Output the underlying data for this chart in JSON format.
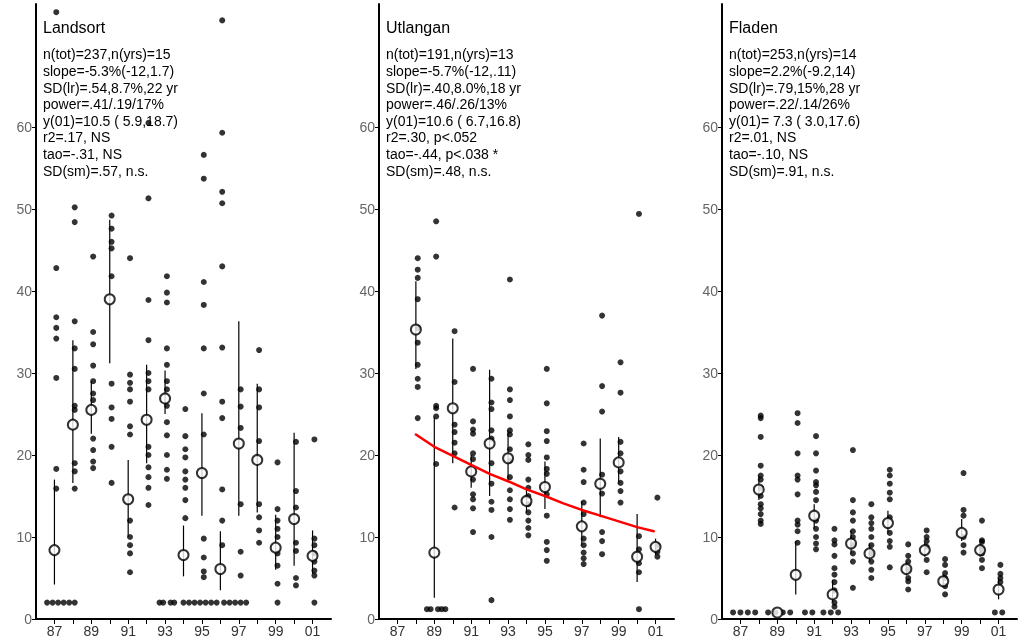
{
  "chart_data": [
    {
      "type": "scatter",
      "title": "Landsort",
      "annotations": [
        "n(tot)=237,n(yrs)=15",
        "slope=-5.3%(-12,1.7)",
        "SD(lr)=.54,8.7%,22 yr",
        "power=.41/.19/17%",
        "y(01)=10.5 ( 5.9,18.7)",
        "r2=.17, NS",
        "tao=-.31, NS",
        "SD(sm)=.57, n.s."
      ],
      "xlim": [
        1986,
        2002
      ],
      "xticks": [
        {
          "value": 1987,
          "label": "87"
        },
        {
          "value": 1988,
          "label": null
        },
        {
          "value": 1989,
          "label": "89"
        },
        {
          "value": 1990,
          "label": null
        },
        {
          "value": 1991,
          "label": "91"
        },
        {
          "value": 1992,
          "label": null
        },
        {
          "value": 1993,
          "label": "93"
        },
        {
          "value": 1994,
          "label": null
        },
        {
          "value": 1995,
          "label": "95"
        },
        {
          "value": 1996,
          "label": null
        },
        {
          "value": 1997,
          "label": "97"
        },
        {
          "value": 1998,
          "label": null
        },
        {
          "value": 1999,
          "label": "99"
        },
        {
          "value": 2000,
          "label": null
        },
        {
          "value": 2001,
          "label": "01"
        }
      ],
      "ylim": [
        0,
        75
      ],
      "yticks": [
        0,
        10,
        20,
        30,
        40,
        50,
        60
      ],
      "grid": false,
      "series": [
        {
          "marker": "circle",
          "color": "#000000",
          "x": [
            1987.1,
            1987.1,
            1987.1,
            1987.1,
            1987.1,
            1987.1,
            1987.1,
            1987.1,
            1986.6,
            1986.9,
            1987.2,
            1987.5,
            1987.8,
            1988.1,
            1988.1,
            1988.1,
            1988.1,
            1988.1,
            1988.1,
            1988.1,
            1988.1,
            1988.1,
            1988.1,
            1988.1,
            1989.1,
            1989.1,
            1989.1,
            1989.1,
            1989.1,
            1989.1,
            1989.1,
            1989.1,
            1989.1,
            1989.1,
            1989.1,
            1990.1,
            1990.1,
            1990.1,
            1990.1,
            1990.1,
            1990.1,
            1990.1,
            1990.1,
            1990.1,
            1990.1,
            1991.1,
            1991.1,
            1991.1,
            1991.1,
            1991.1,
            1991.1,
            1991.1,
            1991.1,
            1991.1,
            1991.1,
            1991.1,
            1991.1,
            1992.1,
            1992.1,
            1992.1,
            1992.1,
            1992.1,
            1992.1,
            1992.1,
            1992.1,
            1992.1,
            1992.1,
            1992.1,
            1992.1,
            1992.1,
            1993.1,
            1993.1,
            1993.1,
            1993.1,
            1993.1,
            1993.1,
            1993.1,
            1993.1,
            1993.1,
            1993.1,
            1993.1,
            1993.1,
            1993.1,
            1992.7,
            1992.9,
            1993.3,
            1993.5,
            1994.1,
            1994.1,
            1994.1,
            1994.1,
            1994.1,
            1994.1,
            1994.1,
            1994.1,
            1994.1,
            1994.0,
            1994.3,
            1994.6,
            1994.9,
            1995.2,
            1995.5,
            1995.8,
            1995.1,
            1995.1,
            1995.1,
            1995.1,
            1995.1,
            1995.1,
            1995.1,
            1995.1,
            1995.1,
            1995.1,
            1995.1,
            1996.1,
            1996.1,
            1996.1,
            1996.1,
            1996.1,
            1996.1,
            1996.1,
            1996.1,
            1996.1,
            1996.1,
            1996.1,
            1996.2,
            1996.5,
            1996.8,
            1997.1,
            1997.4,
            1997.1,
            1997.1,
            1997.1,
            1997.1,
            1997.1,
            1997.1,
            1998.1,
            1998.1,
            1998.1,
            1998.1,
            1998.1,
            1998.1,
            1998.1,
            1998.1,
            1999.1,
            1999.1,
            1999.1,
            1999.1,
            1999.1,
            1999.1,
            1999.1,
            1999.1,
            1999.1,
            2000.1,
            2000.1,
            2000.1,
            2000.1,
            2000.1,
            2000.1,
            2000.1,
            2001.1,
            2001.1,
            2001.1,
            2001.1,
            2001.1,
            2001.1,
            2001.1,
            2001.1
          ],
          "values": [
            74,
            42.8,
            36.8,
            35.5,
            34.2,
            29.4,
            18.3,
            15.9,
            2,
            2,
            2,
            2,
            2,
            2,
            50.2,
            48.4,
            36.3,
            33,
            30.5,
            26,
            25.5,
            19,
            18,
            15.9,
            44.2,
            35,
            33.5,
            30.9,
            29,
            27.5,
            26.7,
            22,
            20.6,
            19.2,
            18.4,
            49.2,
            47.6,
            46,
            45.2,
            41.8,
            28.7,
            25.8,
            24.4,
            21,
            16.6,
            44,
            29.8,
            28.8,
            28,
            26.5,
            23.5,
            22.5,
            12,
            10,
            9,
            8,
            5.7,
            60.5,
            51.3,
            38.9,
            34,
            30,
            29,
            28,
            21,
            20,
            18.5,
            17.3,
            16,
            13.9,
            41.8,
            39.8,
            38.6,
            33,
            31,
            29,
            28,
            26,
            24,
            22.4,
            20,
            18.2,
            17.1,
            2,
            2,
            2,
            2,
            25.6,
            22.3,
            20.7,
            19.7,
            18,
            17,
            16,
            14.5,
            12.3,
            2,
            2,
            2,
            2,
            2,
            2,
            2,
            56.6,
            53.7,
            41.1,
            38.3,
            33,
            27.5,
            22.5,
            9.8,
            7.5,
            5.8,
            5.1,
            73,
            59.3,
            52.1,
            50.7,
            43,
            33.1,
            26.5,
            24.5,
            15.8,
            12,
            9,
            2,
            2,
            2,
            2,
            2,
            28,
            25.9,
            23.3,
            14,
            8.2,
            5.3,
            32.8,
            28,
            25.8,
            21.7,
            14,
            12.4,
            10.8,
            9.3,
            19.1,
            13.4,
            12,
            11,
            10,
            8,
            6.5,
            4.3,
            2,
            21.6,
            15.6,
            13.6,
            9.3,
            8.3,
            5,
            4.1,
            21.9,
            9.8,
            9,
            8,
            7,
            5.9,
            5.3,
            2
          ]
        },
        {
          "marker": "circle",
          "color": "#000000",
          "x": [
            1987,
            1988,
            1989,
            1990,
            1991,
            1992,
            1993,
            1994,
            1995,
            1996,
            1997,
            1998,
            1999,
            2000,
            2001
          ],
          "values": [
            8.4,
            23.7,
            25.5,
            39,
            14.6,
            24.3,
            26.9,
            7.8,
            17.8,
            6.1,
            21.4,
            19.4,
            8.7,
            12.2,
            7.7
          ],
          "errors": [
            [
              4.2,
              17
            ],
            [
              16.6,
              34
            ],
            [
              22.6,
              29
            ],
            [
              31.2,
              48.7
            ],
            [
              10,
              19.4
            ],
            [
              19,
              31
            ],
            [
              25,
              30.3
            ],
            [
              5.2,
              11.4
            ],
            [
              12.6,
              25.1
            ],
            [
              3.5,
              10.7
            ],
            [
              12.6,
              36.3
            ],
            [
              13,
              28.7
            ],
            [
              6,
              12.7
            ],
            [
              6.5,
              22.7
            ],
            [
              5.5,
              10.8
            ]
          ]
        }
      ]
    },
    {
      "type": "scatter",
      "title": "Utlangan",
      "annotations": [
        "n(tot)=191,n(yrs)=13",
        "slope=-5.7%(-12,.11)",
        "SD(lr)=.40,8.0%,18 yr",
        "power=.46/.26/13%",
        "y(01)=10.6 ( 6.7,16.8)",
        "r2=.30, p<.052",
        "tao=-.44, p<.038 *",
        "SD(sm)=.48, n.s."
      ],
      "xlim": [
        1986,
        2002
      ],
      "xticks": [
        {
          "value": 1987,
          "label": "87"
        },
        {
          "value": 1988,
          "label": null
        },
        {
          "value": 1989,
          "label": "89"
        },
        {
          "value": 1990,
          "label": null
        },
        {
          "value": 1991,
          "label": "91"
        },
        {
          "value": 1992,
          "label": null
        },
        {
          "value": 1993,
          "label": "93"
        },
        {
          "value": 1994,
          "label": null
        },
        {
          "value": 1995,
          "label": "95"
        },
        {
          "value": 1996,
          "label": null
        },
        {
          "value": 1997,
          "label": "97"
        },
        {
          "value": 1998,
          "label": null
        },
        {
          "value": 1999,
          "label": "99"
        },
        {
          "value": 2000,
          "label": null
        },
        {
          "value": 2001,
          "label": "01"
        }
      ],
      "ylim": [
        0,
        75
      ],
      "yticks": [
        0,
        10,
        20,
        30,
        40,
        50,
        60
      ],
      "grid": false,
      "series": [
        {
          "marker": "circle",
          "color": "#000000",
          "x": [
            1988.1,
            1988.1,
            1988.1,
            1988.1,
            1988.1,
            1988.1,
            1988.1,
            1988.1,
            1988.1,
            1988.1,
            1989.1,
            1989.1,
            1989.1,
            1989.1,
            1989.1,
            1989.1,
            1988.6,
            1988.8,
            1989.2,
            1989.4,
            1989.6,
            1990.1,
            1990.1,
            1990.1,
            1990.1,
            1990.1,
            1990.1,
            1990.1,
            1991.1,
            1991.1,
            1991.1,
            1991.1,
            1991.1,
            1991.1,
            1991.1,
            1991.1,
            1991.1,
            1991.1,
            1991.1,
            1992.1,
            1992.1,
            1992.1,
            1992.1,
            1992.1,
            1992.1,
            1992.1,
            1992.1,
            1992.1,
            1992.1,
            1992.1,
            1993.1,
            1993.1,
            1993.1,
            1993.1,
            1993.1,
            1993.1,
            1993.1,
            1993.1,
            1993.1,
            1993.1,
            1993.1,
            1993.1,
            1993.1,
            1994.1,
            1994.1,
            1994.1,
            1994.1,
            1994.1,
            1994.1,
            1994.1,
            1994.1,
            1994.1,
            1994.1,
            1994.1,
            1995.1,
            1995.1,
            1995.1,
            1995.1,
            1995.1,
            1995.1,
            1995.1,
            1995.1,
            1995.1,
            1995.1,
            1995.1,
            1995.1,
            1997.1,
            1997.1,
            1997.1,
            1997.1,
            1997.1,
            1997.1,
            1997.1,
            1997.1,
            1997.1,
            1997.1,
            1998.1,
            1998.1,
            1998.1,
            1998.1,
            1998.1,
            1998.1,
            1998.1,
            1998.1,
            1999.1,
            1999.1,
            1999.1,
            1999.1,
            1999.1,
            1999.1,
            1999.1,
            1999.1,
            2000.1,
            2000.1,
            2000.1,
            2000.1,
            2000.1,
            2000.1,
            2001.1,
            2001.1,
            2001.1,
            2001.1
          ],
          "values": [
            44,
            42.6,
            41.6,
            39,
            35.5,
            33.7,
            31,
            29.3,
            28.3,
            24.5,
            48.5,
            44.2,
            26,
            25.7,
            24.7,
            18.9,
            1.2,
            1.2,
            1.2,
            1.2,
            1.2,
            35.1,
            28.9,
            23.7,
            22.8,
            21.5,
            20.2,
            13.6,
            30.5,
            24.1,
            23.1,
            22.6,
            20.2,
            19.5,
            17,
            15.2,
            14.6,
            13.5,
            10.6,
            29.3,
            26.4,
            25.6,
            23,
            22,
            19,
            16.5,
            14.3,
            13.3,
            10,
            2.3,
            41.4,
            28,
            26.7,
            24.7,
            23,
            22.5,
            20.7,
            19.3,
            17.3,
            15.7,
            14.6,
            13.4,
            12.1,
            21.3,
            20,
            19.4,
            17,
            16,
            15,
            14,
            13,
            12,
            11.1,
            10.2,
            30.5,
            26.3,
            22.9,
            21.7,
            19.7,
            18.3,
            17.7,
            15.2,
            12.6,
            9.4,
            8.4,
            7.1,
            21.4,
            18.2,
            16.7,
            14.2,
            12.8,
            9.8,
            9,
            8.1,
            7.4,
            6.7,
            37,
            28.4,
            25.3,
            17.6,
            15.3,
            10.6,
            9.5,
            7.9,
            31.3,
            27.6,
            21.6,
            20.2,
            18,
            16.6,
            15.6,
            14.2,
            49.4,
            10.1,
            8.5,
            6.8,
            5.7,
            1.2,
            14.8,
            9,
            8.2,
            7.6
          ]
        },
        {
          "marker": "circle",
          "color": "#000000",
          "x": [
            1988,
            1989,
            1990,
            1991,
            1992,
            1993,
            1994,
            1995,
            1997,
            1998,
            1999,
            2000,
            2001
          ],
          "values": [
            35.3,
            8.1,
            25.7,
            18,
            21.4,
            19.6,
            14.4,
            16.1,
            11.3,
            16.5,
            19.1,
            7.6,
            8.8
          ],
          "errors": [
            [
              30.5,
              41.2
            ],
            [
              2.6,
              24.6
            ],
            [
              19,
              34.2
            ],
            [
              16,
              20
            ],
            [
              15,
              30.4
            ],
            [
              16.8,
              23
            ],
            [
              13,
              16
            ],
            [
              13.4,
              19.2
            ],
            [
              9,
              14.4
            ],
            [
              12.4,
              22
            ],
            [
              16.5,
              22.2
            ],
            [
              4.5,
              12.8
            ],
            [
              7.8,
              9.8
            ]
          ]
        },
        {
          "type": "line",
          "marker": "none",
          "color": "#ff0000",
          "x": [
            1988,
            1989,
            1990,
            1991,
            1992,
            1993,
            1994,
            1995,
            1996,
            1997,
            1998,
            1999,
            2000,
            2000.9
          ],
          "values": [
            22.5,
            21,
            19.9,
            18.8,
            17.7,
            16.8,
            15.8,
            15,
            14.1,
            13.3,
            12.6,
            11.9,
            11.2,
            10.7
          ]
        }
      ]
    },
    {
      "type": "scatter",
      "title": "Fladen",
      "annotations": [
        "n(tot)=253,n(yrs)=14",
        "slope=2.2%(-9.2,14)",
        "SD(lr)=.79,15%,28 yr",
        "power=.22/.14/26%",
        "y(01)= 7.3 ( 3.0,17.6)",
        "r2=.01, NS",
        "tao=-.10, NS",
        "SD(sm)=.91, n.s."
      ],
      "xlim": [
        1986,
        2002
      ],
      "xticks": [
        {
          "value": 1987,
          "label": "87"
        },
        {
          "value": 1988,
          "label": null
        },
        {
          "value": 1989,
          "label": "89"
        },
        {
          "value": 1990,
          "label": null
        },
        {
          "value": 1991,
          "label": "91"
        },
        {
          "value": 1992,
          "label": null
        },
        {
          "value": 1993,
          "label": "93"
        },
        {
          "value": 1994,
          "label": null
        },
        {
          "value": 1995,
          "label": "95"
        },
        {
          "value": 1996,
          "label": null
        },
        {
          "value": 1997,
          "label": "97"
        },
        {
          "value": 1998,
          "label": null
        },
        {
          "value": 1999,
          "label": "99"
        },
        {
          "value": 2000,
          "label": null
        },
        {
          "value": 2001,
          "label": "01"
        }
      ],
      "ylim": [
        0,
        75
      ],
      "yticks": [
        0,
        10,
        20,
        30,
        40,
        50,
        60
      ],
      "grid": false,
      "series": [
        {
          "marker": "circle",
          "color": "#000000",
          "x": [
            1988.1,
            1988.1,
            1988.1,
            1988.1,
            1988.1,
            1988.1,
            1988.1,
            1988.1,
            1988.1,
            1988.1,
            1988.1,
            1988.1,
            1988.1,
            1986.6,
            1987,
            1987.4,
            1987.8,
            1988.5,
            1988.9,
            1989.3,
            1989.7,
            1990.5,
            1990.9,
            1991.5,
            1991.9,
            1992.3,
            1990.1,
            1990.1,
            1990.1,
            1990.1,
            1990.1,
            1990.1,
            1990.1,
            1990.1,
            1990.1,
            1990.1,
            1991.1,
            1991.1,
            1991.1,
            1991.1,
            1991.1,
            1991.1,
            1991.1,
            1991.1,
            1991.1,
            1991.1,
            1991.1,
            1991.1,
            1992.1,
            1992.1,
            1992.1,
            1992.1,
            1992.1,
            1992.1,
            1992.1,
            1992.1,
            1992.1,
            1992.1,
            1993.1,
            1993.1,
            1993.1,
            1993.1,
            1993.1,
            1993.1,
            1993.1,
            1993.1,
            1993.1,
            1993.1,
            1994.1,
            1994.1,
            1994.1,
            1994.1,
            1994.1,
            1994.1,
            1994.1,
            1994.1,
            1994.1,
            1994.1,
            1995.1,
            1995.1,
            1995.1,
            1995.1,
            1995.1,
            1995.1,
            1995.1,
            1995.1,
            1995.1,
            1995.1,
            1996.1,
            1996.1,
            1996.1,
            1996.1,
            1996.1,
            1996.1,
            1996.1,
            1997.1,
            1997.1,
            1997.1,
            1997.1,
            1997.1,
            1997.1,
            1998.1,
            1998.1,
            1998.1,
            1998.1,
            1998.1,
            1998.1,
            1999.1,
            1999.1,
            1999.1,
            1999.1,
            1999.1,
            1999.1,
            2000.1,
            2000.1,
            2000.1,
            2000.1,
            2000.1,
            2000.1,
            2000.1,
            2001.1,
            2001.1,
            2001.1,
            2001.1,
            2000.8,
            2001.2
          ],
          "values": [
            24.8,
            24.5,
            22.2,
            18.7,
            17.5,
            17,
            16,
            15,
            14,
            13.5,
            12.8,
            12,
            11.6,
            0.8,
            0.8,
            0.8,
            0.8,
            0.8,
            0.8,
            0.8,
            0.8,
            0.8,
            0.8,
            0.8,
            0.8,
            0.8,
            25.1,
            23.9,
            20.2,
            17.5,
            17,
            15.2,
            12,
            11.5,
            10.7,
            9.3,
            22.3,
            20.2,
            18.1,
            16.7,
            16.3,
            15.5,
            14.5,
            12,
            11,
            10,
            9.2,
            8.5,
            11,
            9.6,
            9.1,
            7.7,
            6.2,
            5.4,
            4.5,
            3.5,
            2,
            1.5,
            20.6,
            14.5,
            13,
            12,
            10.7,
            10,
            9,
            8,
            7,
            3.8,
            14,
            12.4,
            11.7,
            11,
            10,
            9,
            8,
            7,
            6,
            5,
            18.2,
            17.5,
            16.5,
            15.4,
            14.6,
            12.4,
            10.5,
            9.5,
            8.8,
            6.3,
            9.1,
            7.7,
            7,
            6,
            5,
            4.6,
            3.6,
            10.8,
            10,
            9.5,
            8.8,
            7.2,
            5.7,
            7.3,
            6.6,
            5.6,
            5,
            4,
            3,
            17.8,
            13.3,
            12.6,
            10,
            9,
            8.1,
            12,
            9.6,
            9.4,
            8.6,
            8,
            7.2,
            6.2,
            6.6,
            5.5,
            5,
            4.5,
            0.8,
            0.8
          ]
        },
        {
          "marker": "circle",
          "color": "#000000",
          "x": [
            1988,
            1989,
            1990,
            1991,
            1992,
            1993,
            1994,
            1995,
            1996,
            1997,
            1998,
            1999,
            2000,
            2001
          ],
          "values": [
            15.8,
            0.8,
            5.4,
            12.6,
            3,
            9.2,
            8,
            11.7,
            6.1,
            8.4,
            4.6,
            10.5,
            8.4,
            3.6
          ],
          "errors": [
            [
              14.5,
              17.5
            ],
            null,
            [
              3,
              9.5
            ],
            [
              11,
              14
            ],
            [
              2,
              4.8
            ],
            [
              8,
              10.8
            ],
            [
              7,
              9.2
            ],
            [
              10.5,
              13.2
            ],
            [
              5.3,
              7
            ],
            [
              7.6,
              9.4
            ],
            [
              4,
              5.5
            ],
            [
              9.5,
              12.2
            ],
            [
              7.6,
              9.2
            ],
            [
              2.4,
              5
            ]
          ]
        }
      ]
    }
  ]
}
